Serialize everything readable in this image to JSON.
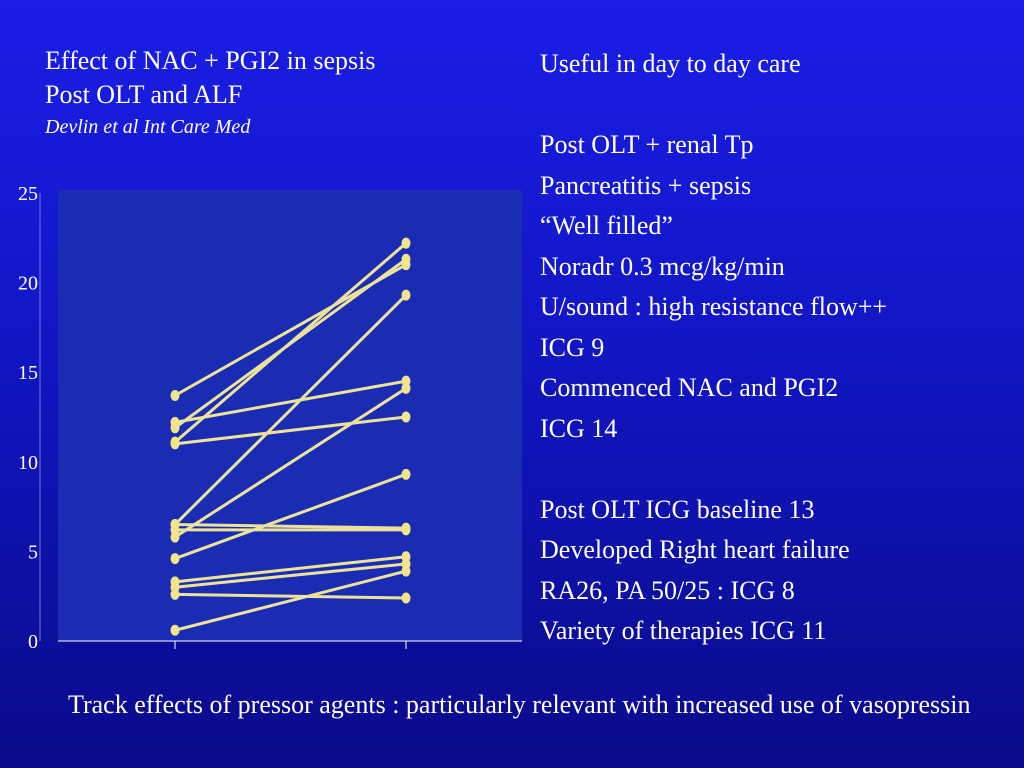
{
  "slide": {
    "left_title": [
      "Effect of NAC + PGI2 in sepsis",
      "Post OLT and ALF"
    ],
    "citation": "Devlin et al Int Care Med",
    "right_notes": [
      "Useful in day to day care",
      "",
      "Post OLT + renal Tp",
      "Pancreatitis + sepsis",
      "“Well filled”",
      "Noradr 0.3 mcg/kg/min",
      "U/sound : high resistance flow++",
      "ICG 9",
      "Commenced NAC and PGI2",
      "ICG 14",
      "",
      "Post OLT ICG baseline 13",
      "Developed Right heart failure",
      "RA26, PA 50/25 : ICG 8",
      "Variety of therapies ICG 11"
    ],
    "footer": "Track effects of pressor agents : particularly relevant with increased use of  vasopressin"
  },
  "colors": {
    "plot_background": "#1a2cb4",
    "line": "#ece39a",
    "point": "#f0e58a"
  },
  "chart_data": {
    "type": "line",
    "ylim": [
      0,
      25
    ],
    "yticks": [
      0,
      5,
      10,
      15,
      20,
      25
    ],
    "xlabel": "",
    "ylabel": "",
    "pairs": [
      [
        13.7,
        21.0
      ],
      [
        12.2,
        14.5
      ],
      [
        11.9,
        21.3
      ],
      [
        11.0,
        12.5
      ],
      [
        11.1,
        22.2
      ],
      [
        6.5,
        19.3
      ],
      [
        6.2,
        6.2
      ],
      [
        5.8,
        14.1
      ],
      [
        4.6,
        9.3
      ],
      [
        3.3,
        4.7
      ],
      [
        3.0,
        4.3
      ],
      [
        2.6,
        2.4
      ],
      [
        0.6,
        3.9
      ],
      [
        6.5,
        6.3
      ]
    ]
  }
}
